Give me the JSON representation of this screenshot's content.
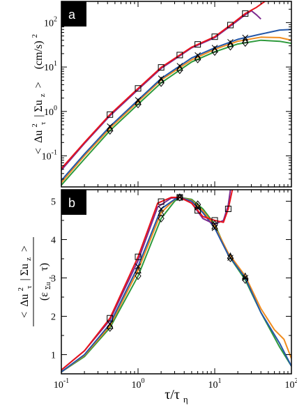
{
  "chart_data": [
    {
      "type": "line",
      "panel_label": "a",
      "xscale": "log",
      "yscale": "log",
      "xlim": [
        0.1,
        100
      ],
      "ylim": [
        0.02,
        300
      ],
      "ylabel": "< Δu_τ^2 | Σu_z > (cm/s)^2",
      "ylabel_parts": {
        "open": "<",
        "delta": "Δu",
        "sup": "2",
        "sub": "τ",
        "bar": "| Σu",
        "barsub": "z",
        "close": ">",
        "units": "(cm/s)"
      },
      "yticks": [
        {
          "v": 0.1,
          "base": "10",
          "exp": "-1"
        },
        {
          "v": 1,
          "base": "10",
          "exp": "0"
        },
        {
          "v": 10,
          "base": "10",
          "exp": "1"
        },
        {
          "v": 100,
          "base": "10",
          "exp": "2"
        }
      ],
      "series": [
        {
          "color": "#e8141c",
          "marker": "square",
          "x": [
            0.1,
            0.2,
            0.43,
            1,
            2,
            5,
            10,
            17,
            25,
            35,
            45
          ],
          "y": [
            0.052,
            0.2,
            0.85,
            3.3,
            9.8,
            28,
            48,
            95,
            160,
            220,
            300
          ],
          "markers_at": [
            0.43,
            1,
            2,
            3.5,
            6,
            10,
            16,
            25
          ]
        },
        {
          "color": "#7d2a8f",
          "marker": "none",
          "x": [
            0.1,
            0.2,
            0.43,
            1,
            2,
            5,
            10,
            17,
            25,
            30,
            35,
            40
          ],
          "y": [
            0.048,
            0.19,
            0.8,
            3.1,
            9.3,
            27,
            46,
            90,
            150,
            185,
            150,
            120
          ],
          "markers_at": []
        },
        {
          "color": "#2457a8",
          "marker": "cross",
          "x": [
            0.1,
            0.2,
            0.43,
            1,
            2,
            5,
            10,
            20,
            40,
            70,
            100
          ],
          "y": [
            0.028,
            0.11,
            0.46,
            1.8,
            5.5,
            16,
            27,
            42,
            55,
            68,
            70
          ],
          "markers_at": [
            0.43,
            1,
            2,
            3.5,
            6,
            10,
            16,
            25
          ]
        },
        {
          "color": "#f08c1e",
          "marker": "triangle",
          "x": [
            0.1,
            0.2,
            0.43,
            1,
            2,
            5,
            10,
            20,
            40,
            70,
            100
          ],
          "y": [
            0.025,
            0.1,
            0.42,
            1.65,
            5.1,
            14.5,
            25,
            38,
            47,
            46,
            40
          ],
          "markers_at": [
            0.43,
            1,
            2,
            3.5,
            6,
            10,
            16,
            25
          ]
        },
        {
          "color": "#2e9a3c",
          "marker": "diamond",
          "x": [
            0.1,
            0.2,
            0.43,
            1,
            2,
            5,
            10,
            20,
            40,
            70,
            100
          ],
          "y": [
            0.022,
            0.085,
            0.37,
            1.45,
            4.4,
            13,
            22,
            33,
            40,
            38,
            34
          ],
          "markers_at": [
            0.43,
            1,
            2,
            3.5,
            6,
            10,
            16,
            25
          ]
        }
      ]
    },
    {
      "type": "line",
      "panel_label": "b",
      "xscale": "log",
      "yscale": "linear",
      "xlim": [
        0.1,
        100
      ],
      "ylim": [
        0.5,
        5.3
      ],
      "xlabel": "τ/τ_η",
      "xlabel_parts": {
        "main": "τ/τ",
        "sub": "η"
      },
      "ylabel": "< Δu_τ^2 | Σu_z > / (ε_Σuz τ)",
      "ylabel_parts": {
        "num_open": "<",
        "num_delta": "Δu",
        "num_sup": "2",
        "num_sub": "τ",
        "num_bar": "| Σu",
        "num_barsub": "z",
        "num_close": ">",
        "den_open": "(ε",
        "den_sub": "Σu",
        "den_subsub": "z",
        "den_tau": "τ)"
      },
      "yticks": [
        1,
        2,
        3,
        4,
        5
      ],
      "xticks": [
        {
          "v": 0.1,
          "base": "10",
          "exp": "-1"
        },
        {
          "v": 1,
          "base": "10",
          "exp": "0"
        },
        {
          "v": 10,
          "base": "10",
          "exp": "1"
        },
        {
          "v": 100,
          "base": "10",
          "exp": "2"
        }
      ],
      "series": [
        {
          "color": "#e8141c",
          "marker": "square",
          "x": [
            0.1,
            0.2,
            0.43,
            1,
            1.8,
            2.7,
            3.5,
            5,
            7,
            10,
            13,
            15,
            17
          ],
          "y": [
            0.6,
            1.1,
            1.95,
            3.55,
            4.95,
            5.1,
            5.1,
            4.95,
            4.6,
            4.5,
            4.45,
            4.8,
            5.3
          ],
          "markers_at": [
            0.43,
            1,
            2,
            3.5,
            6,
            10,
            15
          ]
        },
        {
          "color": "#7d2a8f",
          "marker": "none",
          "x": [
            0.1,
            0.2,
            0.43,
            1,
            1.8,
            2.7,
            3.5,
            5,
            7,
            10,
            13,
            15,
            16
          ],
          "y": [
            0.6,
            1.1,
            1.9,
            3.45,
            4.85,
            5.08,
            5.1,
            4.95,
            4.55,
            4.4,
            4.5,
            4.9,
            5.3
          ],
          "markers_at": []
        },
        {
          "color": "#2457a8",
          "marker": "cross",
          "x": [
            0.1,
            0.2,
            0.43,
            1,
            2,
            3,
            3.5,
            5,
            7,
            10,
            15,
            25,
            40,
            70,
            100
          ],
          "y": [
            0.55,
            1.0,
            1.8,
            3.3,
            4.8,
            5.05,
            5.1,
            5.0,
            4.7,
            4.3,
            3.6,
            3.0,
            2.1,
            1.3,
            0.7
          ],
          "markers_at": [
            0.43,
            1,
            2,
            3.5,
            6,
            10,
            16,
            25
          ]
        },
        {
          "color": "#f08c1e",
          "marker": "triangle",
          "x": [
            0.1,
            0.2,
            0.43,
            1,
            2,
            3,
            3.5,
            5,
            7,
            10,
            15,
            25,
            40,
            60,
            80,
            100
          ],
          "y": [
            0.55,
            0.98,
            1.75,
            3.2,
            4.7,
            5.05,
            5.1,
            5.02,
            4.75,
            4.35,
            3.65,
            3.05,
            2.2,
            1.65,
            1.4,
            0.9
          ],
          "markers_at": [
            0.43,
            1,
            2,
            3.5,
            6,
            10,
            16,
            25
          ]
        },
        {
          "color": "#2e9a3c",
          "marker": "diamond",
          "x": [
            0.1,
            0.2,
            0.43,
            1,
            2,
            3,
            3.5,
            5,
            7,
            10,
            15,
            25,
            40,
            70,
            100
          ],
          "y": [
            0.55,
            0.95,
            1.7,
            3.05,
            4.55,
            5.0,
            5.1,
            5.05,
            4.8,
            4.4,
            3.6,
            2.95,
            2.1,
            1.2,
            0.7
          ],
          "markers_at": [
            0.43,
            1,
            2,
            3.5,
            6,
            10,
            16,
            25
          ]
        }
      ]
    }
  ]
}
